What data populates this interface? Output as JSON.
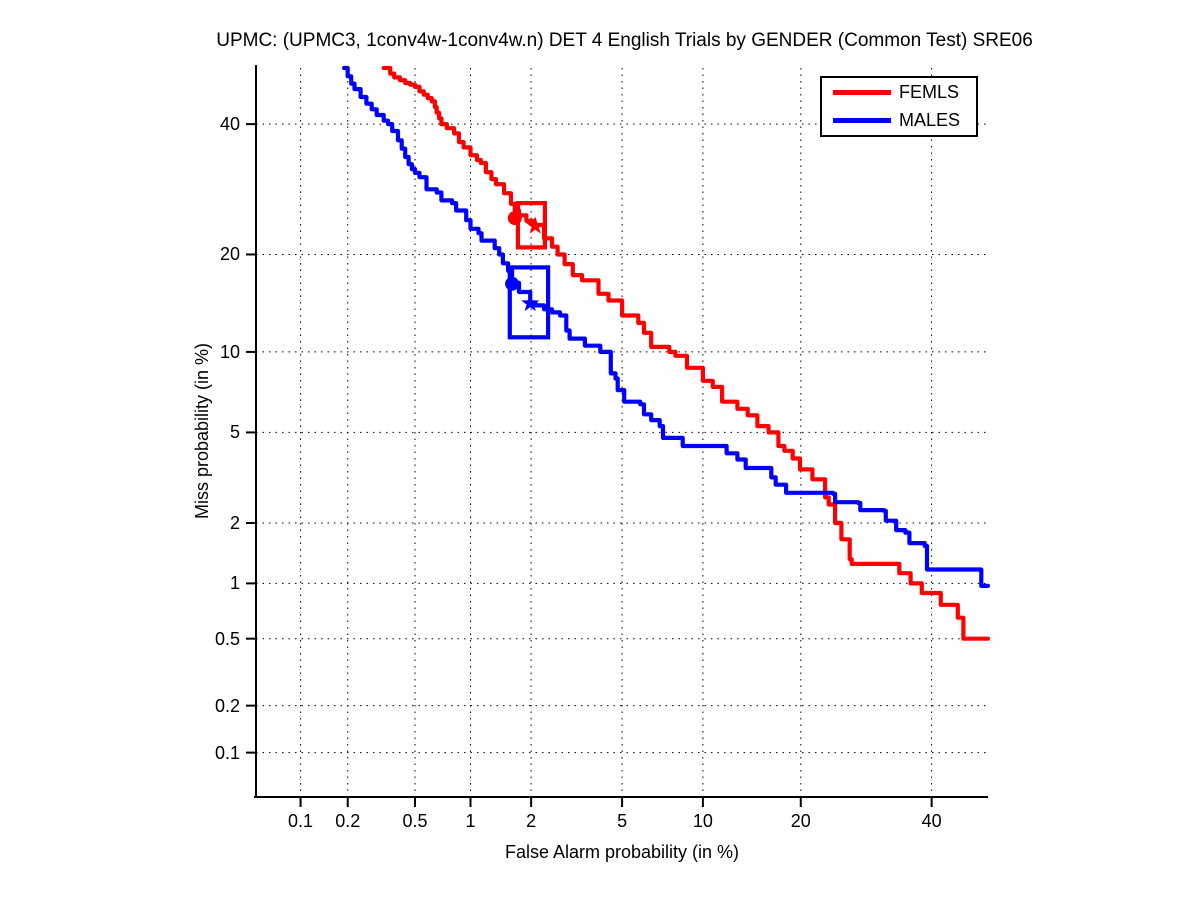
{
  "title": "UPMC: (UPMC3, 1conv4w-1conv4w.n) DET 4 English Trials by GENDER (Common Test) SRE06",
  "axes": {
    "x_label": "False Alarm probability (in %)",
    "y_label": "Miss probability (in %)"
  },
  "legend": {
    "items": [
      {
        "label": "FEMLS",
        "color": "#ff0000"
      },
      {
        "label": "MALES",
        "color": "#0000ff"
      }
    ]
  },
  "chart_data": {
    "type": "line",
    "subtype": "DET-curve (normal-deviate / probit scale on both axes)",
    "title": "UPMC: (UPMC3, 1conv4w-1conv4w.n) DET 4 English Trials by GENDER (Common Test) SRE06",
    "xlabel": "False Alarm probability (in %)",
    "ylabel": "Miss probability (in %)",
    "xlim": [
      0.05,
      50
    ],
    "ylim": [
      0.05,
      50
    ],
    "x_ticks": [
      0.1,
      0.2,
      0.5,
      1,
      2,
      5,
      10,
      20,
      40
    ],
    "y_ticks": [
      0.1,
      0.2,
      0.5,
      1,
      2,
      5,
      10,
      20,
      40
    ],
    "grid": "dotted black, at labeled ticks only",
    "legend_position": "top-right",
    "series": [
      {
        "name": "FEMLS",
        "color": "#ff0000",
        "points": [
          [
            0.33,
            50
          ],
          [
            0.36,
            49
          ],
          [
            0.38,
            48.3
          ],
          [
            0.41,
            47.8
          ],
          [
            0.44,
            47.3
          ],
          [
            0.47,
            47.0
          ],
          [
            0.5,
            46.6
          ],
          [
            0.53,
            45.8
          ],
          [
            0.56,
            45.2
          ],
          [
            0.59,
            44.6
          ],
          [
            0.62,
            44.0
          ],
          [
            0.645,
            43.0
          ],
          [
            0.66,
            42.0
          ],
          [
            0.68,
            41.0
          ],
          [
            0.7,
            40.0
          ],
          [
            0.75,
            39.3
          ],
          [
            0.82,
            38.4
          ],
          [
            0.87,
            36.9
          ],
          [
            0.92,
            36.0
          ],
          [
            1.0,
            34.7
          ],
          [
            1.08,
            33.9
          ],
          [
            1.13,
            33.4
          ],
          [
            1.2,
            31.9
          ],
          [
            1.28,
            30.8
          ],
          [
            1.35,
            30.0
          ],
          [
            1.48,
            28.6
          ],
          [
            1.6,
            27.0
          ],
          [
            1.67,
            26.0
          ],
          [
            1.75,
            25.3
          ],
          [
            1.9,
            24.5
          ],
          [
            2.05,
            23.9
          ],
          [
            2.3,
            22.1
          ],
          [
            2.5,
            21.0
          ],
          [
            2.65,
            20.0
          ],
          [
            2.85,
            18.8
          ],
          [
            3.1,
            17.5
          ],
          [
            3.4,
            16.9
          ],
          [
            4.0,
            15.4
          ],
          [
            4.4,
            14.7
          ],
          [
            5.0,
            13.2
          ],
          [
            5.8,
            12.5
          ],
          [
            6.1,
            11.6
          ],
          [
            6.5,
            10.4
          ],
          [
            7.6,
            10.0
          ],
          [
            8.0,
            9.7
          ],
          [
            8.8,
            8.8
          ],
          [
            10.0,
            7.9
          ],
          [
            10.8,
            7.5
          ],
          [
            11.6,
            6.6
          ],
          [
            13.0,
            6.2
          ],
          [
            14.0,
            5.85
          ],
          [
            15.0,
            5.3
          ],
          [
            16.2,
            5.0
          ],
          [
            17.3,
            4.4
          ],
          [
            18.0,
            4.2
          ],
          [
            19.0,
            3.9
          ],
          [
            19.9,
            3.5
          ],
          [
            21.5,
            3.17
          ],
          [
            23.2,
            2.63
          ],
          [
            23.7,
            2.44
          ],
          [
            24.6,
            2.0
          ],
          [
            25.5,
            1.67
          ],
          [
            26.7,
            1.33
          ],
          [
            27.0,
            1.26
          ],
          [
            34.0,
            1.26
          ],
          [
            34.5,
            1.13
          ],
          [
            36.2,
            1.13
          ],
          [
            36.4,
            1.0
          ],
          [
            38.0,
            1.0
          ],
          [
            38.3,
            0.89
          ],
          [
            41.3,
            0.89
          ],
          [
            41.6,
            0.77
          ],
          [
            44.3,
            0.77
          ],
          [
            44.6,
            0.655
          ],
          [
            45.3,
            0.655
          ],
          [
            45.6,
            0.5
          ],
          [
            50.0,
            0.5
          ]
        ]
      },
      {
        "name": "MALES",
        "color": "#0000ff",
        "points": [
          [
            0.19,
            50
          ],
          [
            0.2,
            48.5
          ],
          [
            0.21,
            47.2
          ],
          [
            0.22,
            46.2
          ],
          [
            0.24,
            44.8
          ],
          [
            0.26,
            43.6
          ],
          [
            0.28,
            42.6
          ],
          [
            0.3,
            41.6
          ],
          [
            0.33,
            40.6
          ],
          [
            0.35,
            40.0
          ],
          [
            0.37,
            38.8
          ],
          [
            0.4,
            37.2
          ],
          [
            0.42,
            35.8
          ],
          [
            0.44,
            34.4
          ],
          [
            0.46,
            33.2
          ],
          [
            0.48,
            32.4
          ],
          [
            0.5,
            31.8
          ],
          [
            0.53,
            31.1
          ],
          [
            0.58,
            29.2
          ],
          [
            0.66,
            28.7
          ],
          [
            0.7,
            27.5
          ],
          [
            0.8,
            27.1
          ],
          [
            0.84,
            26.0
          ],
          [
            0.95,
            24.6
          ],
          [
            1.0,
            23.4
          ],
          [
            1.1,
            22.8
          ],
          [
            1.14,
            21.8
          ],
          [
            1.33,
            20.8
          ],
          [
            1.4,
            20.0
          ],
          [
            1.46,
            18.9
          ],
          [
            1.55,
            18.0
          ],
          [
            1.62,
            16.6
          ],
          [
            1.75,
            15.6
          ],
          [
            1.98,
            14.4
          ],
          [
            2.1,
            14.2
          ],
          [
            2.3,
            13.8
          ],
          [
            2.5,
            13.5
          ],
          [
            2.72,
            13.2
          ],
          [
            2.9,
            11.8
          ],
          [
            3.0,
            11.1
          ],
          [
            3.5,
            10.5
          ],
          [
            4.07,
            10.0
          ],
          [
            4.5,
            8.4
          ],
          [
            4.7,
            8.05
          ],
          [
            4.8,
            7.3
          ],
          [
            5.1,
            6.6
          ],
          [
            5.9,
            6.45
          ],
          [
            6.1,
            5.9
          ],
          [
            6.5,
            5.6
          ],
          [
            7.0,
            5.3
          ],
          [
            7.2,
            4.75
          ],
          [
            8.4,
            4.75
          ],
          [
            8.5,
            4.4
          ],
          [
            11.6,
            4.4
          ],
          [
            12.0,
            4.1
          ],
          [
            13.0,
            3.86
          ],
          [
            13.8,
            3.55
          ],
          [
            16.5,
            3.23
          ],
          [
            17.0,
            3.0
          ],
          [
            18.2,
            2.76
          ],
          [
            24.3,
            2.73
          ],
          [
            24.6,
            2.5
          ],
          [
            28.0,
            2.48
          ],
          [
            28.3,
            2.3
          ],
          [
            32.0,
            2.28
          ],
          [
            32.3,
            2.05
          ],
          [
            34.0,
            1.85
          ],
          [
            35.5,
            1.8
          ],
          [
            36.2,
            1.6
          ],
          [
            38.8,
            1.55
          ],
          [
            39.2,
            1.18
          ],
          [
            48.4,
            1.18
          ],
          [
            48.8,
            0.97
          ],
          [
            50.0,
            0.97
          ]
        ]
      }
    ],
    "markers": [
      {
        "series": "FEMLS",
        "shape": "circle",
        "fa": 1.67,
        "miss": 24.9
      },
      {
        "series": "FEMLS",
        "shape": "star",
        "fa": 2.09,
        "miss": 23.8
      },
      {
        "series": "MALES",
        "shape": "circle",
        "fa": 1.62,
        "miss": 16.5
      },
      {
        "series": "MALES",
        "shape": "star",
        "fa": 1.98,
        "miss": 14.4
      }
    ],
    "boxes": [
      {
        "series": "FEMLS",
        "color": "#ff0000",
        "fa_range": [
          1.73,
          2.32
        ],
        "miss_range": [
          20.9,
          27.1
        ]
      },
      {
        "series": "MALES",
        "color": "#0000ff",
        "fa_range": [
          1.58,
          2.4
        ],
        "miss_range": [
          11.2,
          18.4
        ]
      }
    ]
  }
}
